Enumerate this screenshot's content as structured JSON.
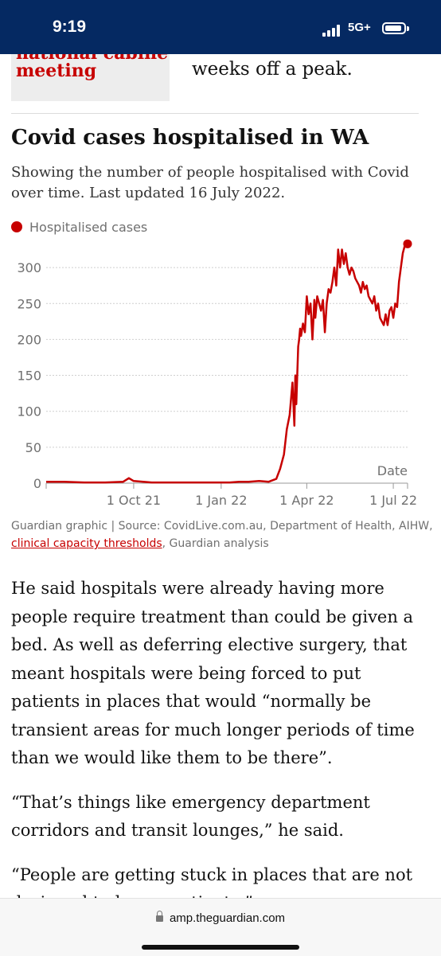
{
  "status_bar": {
    "time": "9:19",
    "network": "5G+"
  },
  "previous": {
    "related_link_line1": "national cabinet",
    "related_link_line2": "meeting",
    "paragraph_end": "weeks off a peak."
  },
  "chart": {
    "title": "Covid cases hospitalised in WA",
    "subtitle": "Showing the number of people hospitalised with Covid over time. Last updated 16 July 2022.",
    "legend_label": "Hospitalised cases",
    "source_prefix": "Guardian graphic | Source: CovidLive.com.au, Department of Health, AIHW, ",
    "source_link": "clinical capacity thresholds",
    "source_suffix": ", Guardian analysis"
  },
  "chart_data": {
    "type": "line",
    "title": "Covid cases hospitalised in WA",
    "subtitle": "Showing the number of people hospitalised with Covid over time. Last updated 16 July 2022.",
    "xlabel": "Date",
    "ylabel": "",
    "ylim": [
      0,
      340
    ],
    "xlim": [
      "2021-07-01",
      "2022-07-16"
    ],
    "y_ticks": [
      "0",
      "50",
      "100",
      "150",
      "200",
      "250",
      "300"
    ],
    "y_tick_values": [
      0,
      50,
      100,
      150,
      200,
      250,
      300
    ],
    "x_ticks": [
      "1 Oct 21",
      "1 Jan 22",
      "1 Apr 22",
      "1 Jul 22"
    ],
    "x_tick_values": [
      "2021-10-01",
      "2022-01-01",
      "2022-04-01",
      "2022-07-01"
    ],
    "grid": true,
    "legend": "top-left",
    "series": [
      {
        "name": "Hospitalised cases",
        "color": "#c70000",
        "x": [
          "2021-07-01",
          "2021-07-20",
          "2021-08-10",
          "2021-09-01",
          "2021-09-20",
          "2021-09-26",
          "2021-10-01",
          "2021-10-20",
          "2021-11-20",
          "2021-12-20",
          "2022-01-01",
          "2022-01-10",
          "2022-01-20",
          "2022-01-30",
          "2022-02-10",
          "2022-02-20",
          "2022-02-28",
          "2022-03-04",
          "2022-03-08",
          "2022-03-11",
          "2022-03-14",
          "2022-03-17",
          "2022-03-19",
          "2022-03-20",
          "2022-03-21",
          "2022-03-23",
          "2022-03-24",
          "2022-03-25",
          "2022-03-26",
          "2022-03-28",
          "2022-03-30",
          "2022-04-01",
          "2022-04-03",
          "2022-04-05",
          "2022-04-07",
          "2022-04-09",
          "2022-04-10",
          "2022-04-12",
          "2022-04-14",
          "2022-04-16",
          "2022-04-18",
          "2022-04-20",
          "2022-04-22",
          "2022-04-24",
          "2022-04-26",
          "2022-04-28",
          "2022-04-30",
          "2022-05-02",
          "2022-05-04",
          "2022-05-06",
          "2022-05-08",
          "2022-05-10",
          "2022-05-12",
          "2022-05-14",
          "2022-05-16",
          "2022-05-18",
          "2022-05-20",
          "2022-05-22",
          "2022-05-24",
          "2022-05-26",
          "2022-05-28",
          "2022-05-30",
          "2022-06-01",
          "2022-06-03",
          "2022-06-05",
          "2022-06-07",
          "2022-06-09",
          "2022-06-11",
          "2022-06-13",
          "2022-06-15",
          "2022-06-17",
          "2022-06-19",
          "2022-06-21",
          "2022-06-23",
          "2022-06-25",
          "2022-06-27",
          "2022-06-29",
          "2022-07-01",
          "2022-07-03",
          "2022-07-05",
          "2022-07-07",
          "2022-07-09",
          "2022-07-11",
          "2022-07-13",
          "2022-07-16"
        ],
        "y": [
          2,
          2,
          1,
          1,
          2,
          7,
          3,
          1,
          1,
          1,
          1,
          1,
          2,
          2,
          3,
          2,
          6,
          20,
          40,
          75,
          95,
          140,
          80,
          150,
          110,
          190,
          200,
          215,
          205,
          222,
          210,
          260,
          235,
          250,
          200,
          255,
          230,
          260,
          250,
          240,
          255,
          210,
          250,
          270,
          265,
          280,
          300,
          275,
          325,
          300,
          325,
          305,
          320,
          300,
          290,
          300,
          295,
          285,
          280,
          275,
          265,
          280,
          270,
          275,
          260,
          255,
          250,
          260,
          240,
          250,
          230,
          225,
          220,
          235,
          220,
          240,
          245,
          230,
          250,
          245,
          280,
          300,
          320,
          330,
          333
        ]
      }
    ]
  },
  "article": {
    "paragraphs": [
      "He said hospitals were already having more people require treatment than could be given a bed. As well as deferring elective surgery, that meant hospitals were being forced to put patients in places that would “normally be transient areas for much longer periods of time than we would like them to be there”.",
      "“That’s things like emergency department corridors and transit lounges,” he said.",
      "“People are getting stuck in places that are not designed to house patients.”"
    ]
  },
  "browser": {
    "url": "amp.theguardian.com"
  },
  "colors": {
    "guardian_navy": "#052962",
    "accent_red": "#c70000"
  },
  "icons": {
    "lock": "lock-icon",
    "signal": "signal-icon",
    "battery": "battery-icon"
  }
}
